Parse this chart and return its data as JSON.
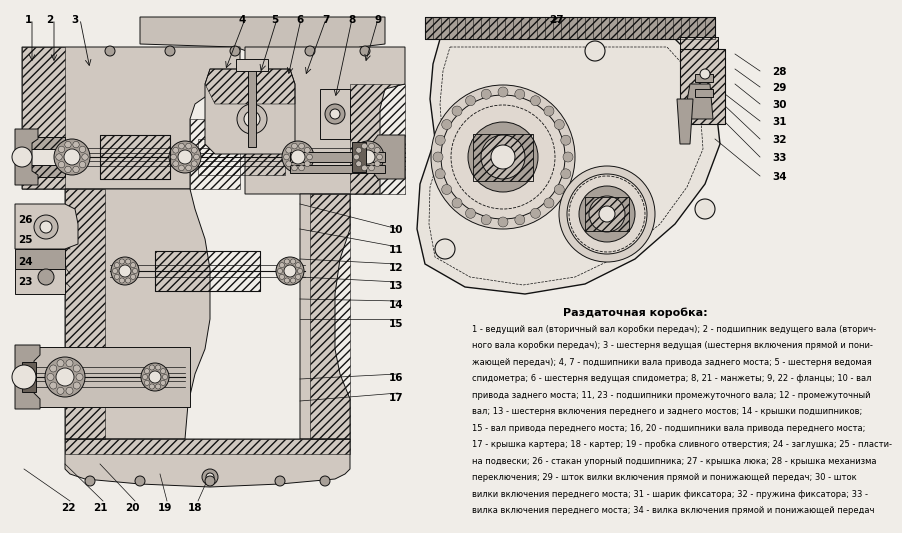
{
  "bg_color": "#f0ede8",
  "diagram_title": "Раздаточная коробка:",
  "description_lines": [
    "1 - ведущий вал (вторичный вал коробки передач); 2 - подшипник ведущего вала (вторич-",
    "ного вала коробки передач); 3 - шестерня ведущая (шестерня включения прямой и пони-",
    "жающей передач); 4, 7 - подшипники вала привода заднего моста; 5 - шестерня ведомая",
    "спидометра; 6 - шестерня ведущая спидометра; 8, 21 - манжеты; 9, 22 - фланцы; 10 - вал",
    "привода заднего моста; 11, 23 - подшипники промежуточного вала; 12 - промежуточный",
    "вал; 13 - шестерня включения переднего и заднего мостов; 14 - крышки подшипников;",
    "15 - вал привода переднего моста; 16, 20 - подшипники вала привода переднего моста;",
    "17 - крышка картера; 18 - картер; 19 - пробка сливного отверстия; 24 - заглушка; 25 - пласти-",
    "на подвески; 26 - стакан упорный подшипника; 27 - крышка люка; 28 - крышка механизма",
    "переключения; 29 - шток вилки включения прямой и понижающей передач; 30 - шток",
    "вилки включения переднего моста; 31 - шарик фиксатора; 32 - пружина фиксатора; 33 -",
    "вилка включения переднего моста; 34 - вилка включения прямой и понижающей передач"
  ],
  "lc": "#111111",
  "fl": "#d0c8c0",
  "fw": "#e8e3dc",
  "fm": "#a8a098",
  "fd": "#686058"
}
